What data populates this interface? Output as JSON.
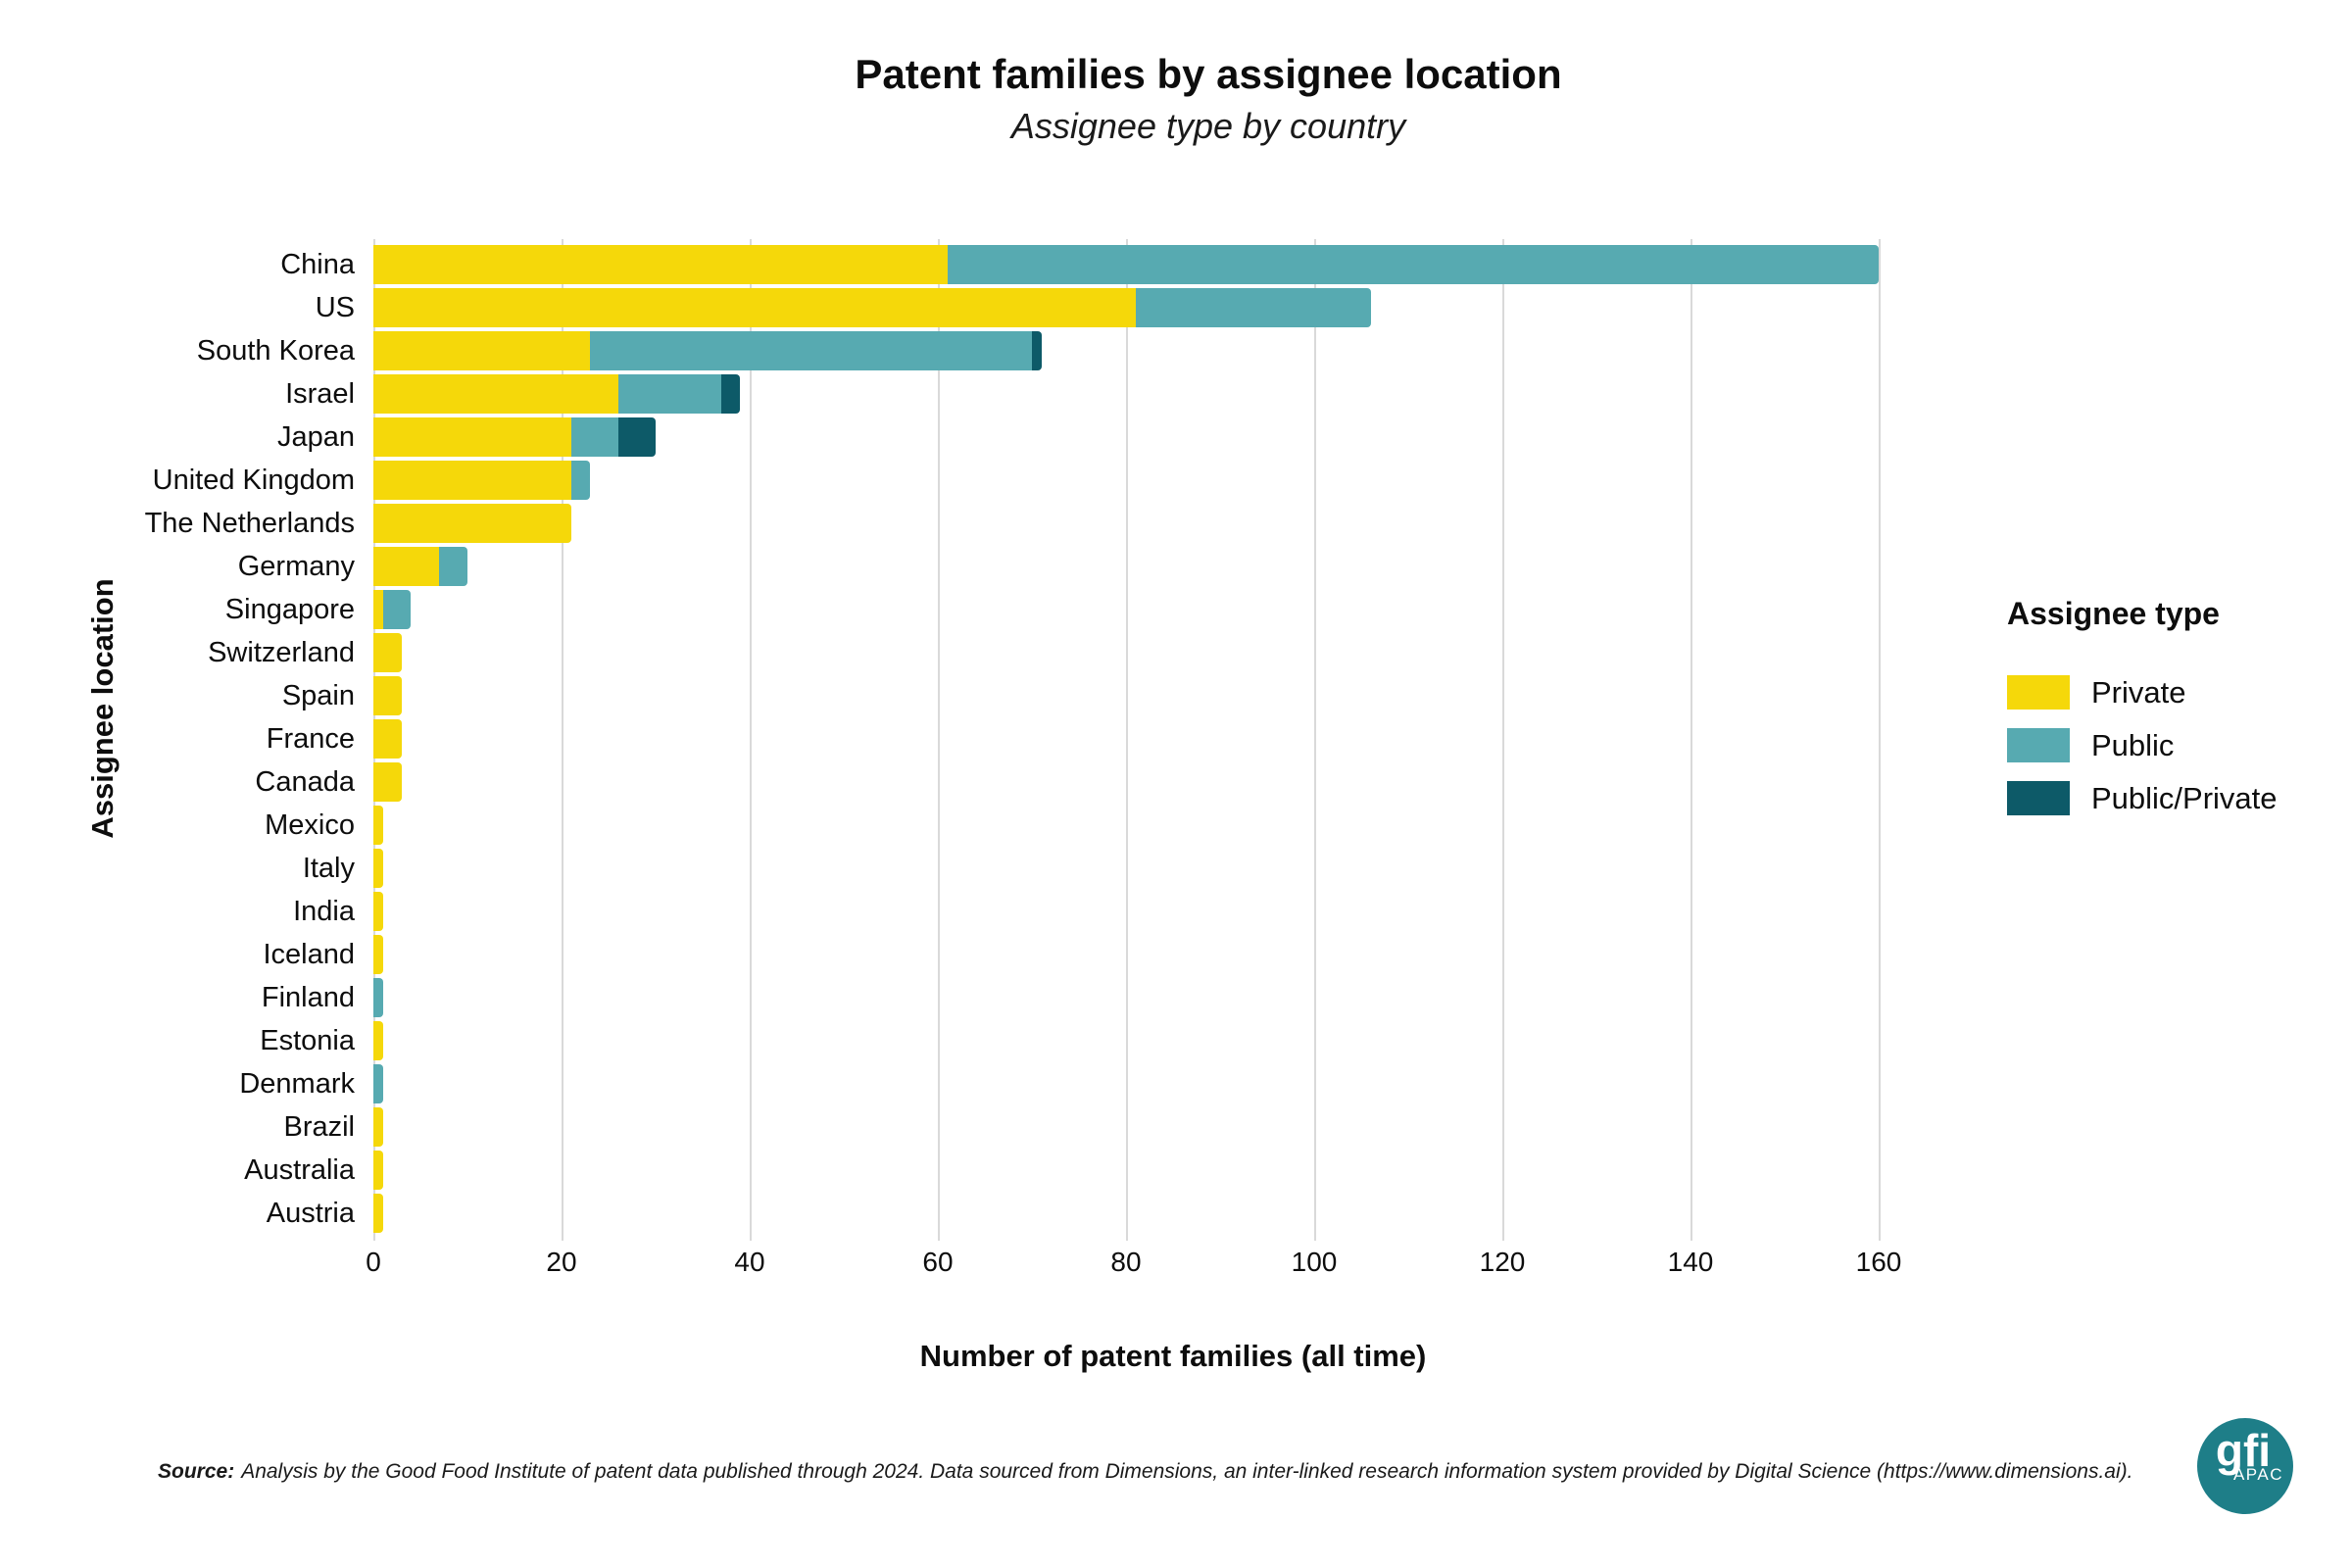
{
  "chart_data": {
    "type": "bar",
    "orientation": "horizontal",
    "stacked": true,
    "title": "Patent families by assignee location",
    "subtitle": "Assignee type by country",
    "xlabel": "Number of patent families (all time)",
    "ylabel": "Assignee location",
    "legend_title": "Assignee type",
    "legend_position": "right",
    "grid": "vertical",
    "xlim": [
      0,
      160
    ],
    "xticks": [
      0,
      20,
      40,
      60,
      80,
      100,
      120,
      140,
      160
    ],
    "categories": [
      "China",
      "US",
      "South Korea",
      "Israel",
      "Japan",
      "United Kingdom",
      "The Netherlands",
      "Germany",
      "Singapore",
      "Switzerland",
      "Spain",
      "France",
      "Canada",
      "Mexico",
      "Italy",
      "India",
      "Iceland",
      "Finland",
      "Estonia",
      "Denmark",
      "Brazil",
      "Australia",
      "Austria"
    ],
    "series": [
      {
        "name": "Private",
        "color": "#F5D80A",
        "values": [
          61,
          81,
          23,
          26,
          21,
          21,
          21,
          7,
          1,
          3,
          3,
          3,
          3,
          1,
          1,
          1,
          1,
          0,
          1,
          0,
          1,
          1,
          1
        ]
      },
      {
        "name": "Public",
        "color": "#57AAB1",
        "values": [
          99,
          25,
          47,
          11,
          5,
          2,
          0,
          3,
          3,
          0,
          0,
          0,
          0,
          0,
          0,
          0,
          0,
          1,
          0,
          1,
          0,
          0,
          0
        ]
      },
      {
        "name": "Public/Private",
        "color": "#0D5A68",
        "values": [
          0,
          0,
          1,
          2,
          4,
          0,
          0,
          0,
          0,
          0,
          0,
          0,
          0,
          0,
          0,
          0,
          0,
          0,
          0,
          0,
          0,
          0,
          0
        ]
      }
    ]
  },
  "source": {
    "prefix": "Source:",
    "text": "Analysis by the Good Food Institute of patent data published through 2024. Data sourced from Dimensions, an inter-linked research information system provided by Digital Science (https://www.dimensions.ai)."
  },
  "logo": {
    "text": "gfi",
    "subtext": "APAC",
    "color": "#1E7E88"
  }
}
